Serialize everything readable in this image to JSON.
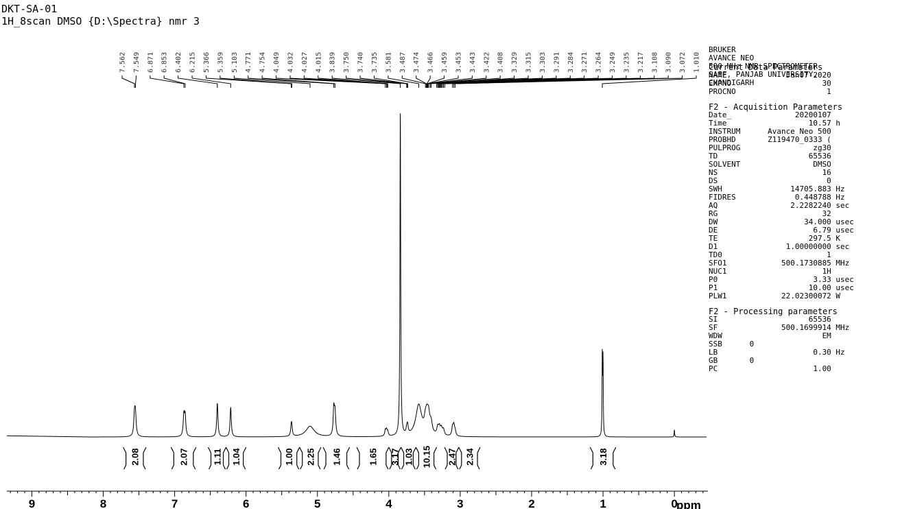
{
  "header": {
    "sample": "DKT-SA-01",
    "experiment": "1H_8scan DMSO {D:\\Spectra} nmr 3"
  },
  "instrument_info": [
    "BRUKER",
    "AVANCE NEO",
    "500 MHz NMR SPECTROMETER",
    "SAIF, PANJAB UNIVERSITY,",
    "CHANDIGARH"
  ],
  "parameters": {
    "sections": [
      {
        "title": "Current Data Parameters",
        "rows": [
          {
            "key": "NAME",
            "value": "Jan07-2020",
            "unit": ""
          },
          {
            "key": "EXPNO",
            "value": "30",
            "unit": ""
          },
          {
            "key": "PROCNO",
            "value": "1",
            "unit": ""
          }
        ]
      },
      {
        "title": "F2 - Acquisition Parameters",
        "rows": [
          {
            "key": "Date_",
            "value": "20200107",
            "unit": ""
          },
          {
            "key": "Time",
            "value": "10.57",
            "unit": "h"
          },
          {
            "key": "INSTRUM",
            "value": "Avance Neo 500",
            "unit": ""
          },
          {
            "key": "PROBHD",
            "value": "Z119470_0333 (",
            "unit": ""
          },
          {
            "key": "PULPROG",
            "value": "zg30",
            "unit": ""
          },
          {
            "key": "TD",
            "value": "65536",
            "unit": ""
          },
          {
            "key": "SOLVENT",
            "value": "DMSO",
            "unit": ""
          },
          {
            "key": "NS",
            "value": "16",
            "unit": ""
          },
          {
            "key": "DS",
            "value": "0",
            "unit": ""
          },
          {
            "key": "SWH",
            "value": "14705.883",
            "unit": "Hz"
          },
          {
            "key": "FIDRES",
            "value": "0.448788",
            "unit": "Hz"
          },
          {
            "key": "AQ",
            "value": "2.2282240",
            "unit": "sec"
          },
          {
            "key": "RG",
            "value": "32",
            "unit": ""
          },
          {
            "key": "DW",
            "value": "34.000",
            "unit": "usec"
          },
          {
            "key": "DE",
            "value": "6.79",
            "unit": "usec"
          },
          {
            "key": "TE",
            "value": "297.5",
            "unit": "K"
          },
          {
            "key": "D1",
            "value": "1.00000000",
            "unit": "sec"
          },
          {
            "key": "TD0",
            "value": "1",
            "unit": ""
          },
          {
            "key": "SFO1",
            "value": "500.1730885",
            "unit": "MHz"
          },
          {
            "key": "NUC1",
            "value": "1H",
            "unit": ""
          },
          {
            "key": "P0",
            "value": "3.33",
            "unit": "usec"
          },
          {
            "key": "P1",
            "value": "10.00",
            "unit": "usec"
          },
          {
            "key": "PLW1",
            "value": "22.02300072",
            "unit": "W"
          }
        ]
      },
      {
        "title": "F2 - Processing parameters",
        "rows": [
          {
            "key": "SI",
            "value": "65536",
            "unit": ""
          },
          {
            "key": "SF",
            "value": "500.1699914",
            "unit": "MHz"
          },
          {
            "key": "WDW",
            "value": "EM",
            "unit": ""
          },
          {
            "key": "SSB",
            "value": "0",
            "unit": "",
            "short": true
          },
          {
            "key": "LB",
            "value": "0.30",
            "unit": "Hz"
          },
          {
            "key": "GB",
            "value": "0",
            "unit": "",
            "short": true
          },
          {
            "key": "PC",
            "value": "1.00",
            "unit": ""
          }
        ]
      }
    ]
  },
  "chart_data": {
    "type": "line",
    "xlabel": "ppm",
    "xlim": [
      9.35,
      -0.45
    ],
    "reversed_x": true,
    "x_ticks": [
      9,
      8,
      7,
      6,
      5,
      4,
      3,
      2,
      1,
      0
    ],
    "x_tick_labels": [
      "9",
      "8",
      "7",
      "6",
      "5",
      "4",
      "3",
      "2",
      "1",
      "0"
    ],
    "peak_labels": [
      "7.562",
      "7.549",
      "6.871",
      "6.853",
      "6.402",
      "6.215",
      "5.366",
      "5.359",
      "5.103",
      "4.771",
      "4.754",
      "4.049",
      "4.032",
      "4.027",
      "4.015",
      "3.839",
      "3.750",
      "3.740",
      "3.735",
      "3.581",
      "3.487",
      "3.474",
      "3.466",
      "3.459",
      "3.453",
      "3.443",
      "3.422",
      "3.408",
      "3.329",
      "3.315",
      "3.303",
      "3.291",
      "3.284",
      "3.271",
      "3.264",
      "3.249",
      "3.235",
      "3.217",
      "3.108",
      "3.090",
      "3.072",
      "1.010"
    ],
    "peaks": [
      {
        "ppm": 7.562,
        "height": 0.25,
        "width": 0.012
      },
      {
        "ppm": 7.549,
        "height": 0.24,
        "width": 0.012
      },
      {
        "ppm": 6.871,
        "height": 0.25,
        "width": 0.011
      },
      {
        "ppm": 6.853,
        "height": 0.24,
        "width": 0.011
      },
      {
        "ppm": 6.402,
        "height": 0.41,
        "width": 0.01
      },
      {
        "ppm": 6.215,
        "height": 0.36,
        "width": 0.01
      },
      {
        "ppm": 5.366,
        "height": 0.12,
        "width": 0.01
      },
      {
        "ppm": 5.359,
        "height": 0.08,
        "width": 0.01
      },
      {
        "ppm": 5.103,
        "height": 0.13,
        "width": 0.07
      },
      {
        "ppm": 4.771,
        "height": 0.31,
        "width": 0.01
      },
      {
        "ppm": 4.754,
        "height": 0.29,
        "width": 0.012
      },
      {
        "ppm": 4.049,
        "height": 0.07,
        "width": 0.01
      },
      {
        "ppm": 4.032,
        "height": 0.07,
        "width": 0.01
      },
      {
        "ppm": 4.015,
        "height": 0.05,
        "width": 0.01
      },
      {
        "ppm": 3.839,
        "height": 4.0,
        "width": 0.006
      },
      {
        "ppm": 3.75,
        "height": 0.06,
        "width": 0.01
      },
      {
        "ppm": 3.74,
        "height": 0.06,
        "width": 0.01
      },
      {
        "ppm": 3.735,
        "height": 0.05,
        "width": 0.01
      },
      {
        "ppm": 3.581,
        "height": 0.38,
        "width": 0.05
      },
      {
        "ppm": 3.487,
        "height": 0.14,
        "width": 0.02
      },
      {
        "ppm": 3.466,
        "height": 0.17,
        "width": 0.02
      },
      {
        "ppm": 3.443,
        "height": 0.2,
        "width": 0.02
      },
      {
        "ppm": 3.408,
        "height": 0.13,
        "width": 0.02
      },
      {
        "ppm": 3.315,
        "height": 0.09,
        "width": 0.015
      },
      {
        "ppm": 3.291,
        "height": 0.09,
        "width": 0.015
      },
      {
        "ppm": 3.264,
        "height": 0.08,
        "width": 0.015
      },
      {
        "ppm": 3.235,
        "height": 0.07,
        "width": 0.015
      },
      {
        "ppm": 3.108,
        "height": 0.1,
        "width": 0.012
      },
      {
        "ppm": 3.09,
        "height": 0.12,
        "width": 0.012
      },
      {
        "ppm": 3.072,
        "height": 0.06,
        "width": 0.012
      },
      {
        "ppm": 1.01,
        "height": 0.96,
        "width": 0.004
      },
      {
        "ppm": 1.0,
        "height": 0.92,
        "width": 0.004
      },
      {
        "ppm": 0.0,
        "height": 0.09,
        "width": 0.004
      }
    ],
    "integrals": [
      {
        "value": "2.08",
        "from": 7.72,
        "to": 7.4
      },
      {
        "value": "2.07",
        "from": 7.05,
        "to": 6.7
      },
      {
        "value": "1.11",
        "from": 6.53,
        "to": 6.28
      },
      {
        "value": "1.04",
        "from": 6.28,
        "to": 6.0
      },
      {
        "value": "1.00",
        "from": 5.55,
        "to": 5.25
      },
      {
        "value": "2.25",
        "from": 5.25,
        "to": 4.95
      },
      {
        "value": "1.46",
        "from": 4.92,
        "to": 4.55
      },
      {
        "value": "1.65",
        "from": 4.45,
        "to": 4.0
      },
      {
        "value": "3.17",
        "from": 4.0,
        "to": 3.83
      },
      {
        "value": "1.03",
        "from": 3.83,
        "to": 3.62
      },
      {
        "value": "10.15",
        "from": 3.62,
        "to": 3.33
      },
      {
        "value": "2.47",
        "from": 3.22,
        "to": 3.02
      },
      {
        "value": "2.34",
        "from": 3.02,
        "to": 2.72
      },
      {
        "value": "3.18",
        "from": 1.18,
        "to": 0.82
      }
    ]
  }
}
